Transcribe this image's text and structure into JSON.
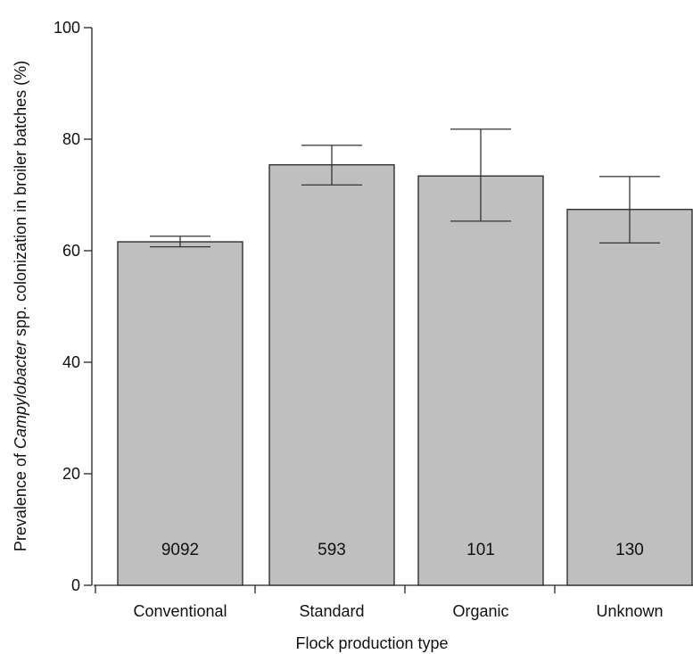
{
  "chart_data": {
    "type": "bar",
    "xlabel": "Flock production type",
    "ylabel_parts": {
      "before": "Prevalence of ",
      "italic": "Campylobacter",
      "after": " spp. colonization in broiler batches (%)"
    },
    "ylim": [
      0,
      100
    ],
    "yticks": [
      0,
      20,
      40,
      60,
      80,
      100
    ],
    "ytick_labels": [
      "0",
      "20",
      "40",
      "60",
      "80",
      "100"
    ],
    "categories": [
      "Conventional",
      "Standard",
      "Organic",
      "Unknown"
    ],
    "values": [
      61.6,
      75.4,
      73.4,
      67.4
    ],
    "error_low": [
      60.7,
      71.8,
      65.3,
      61.4
    ],
    "error_high": [
      62.6,
      78.9,
      81.8,
      73.3
    ],
    "bar_labels": [
      "9092",
      "593",
      "101",
      "130"
    ],
    "grid": false,
    "legend": "none",
    "colors": {
      "bar_fill": "#bfbfbf",
      "bar_edge": "#222222"
    }
  }
}
